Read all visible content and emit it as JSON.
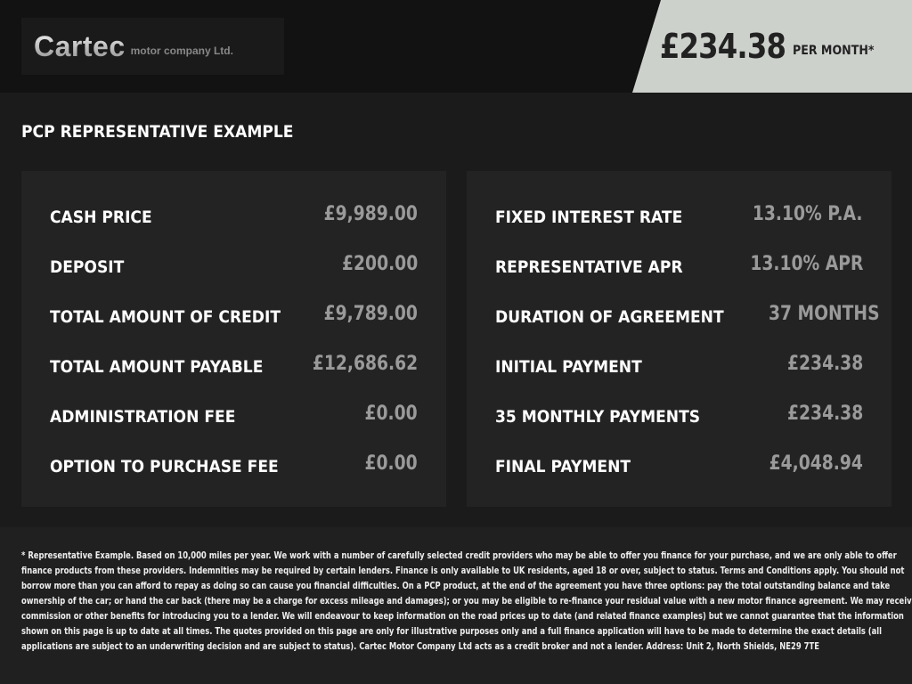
{
  "logo": {
    "main": "Cartec",
    "sub": "motor company Ltd."
  },
  "price": {
    "amount": "£234.38",
    "suffix": "PER MONTH*"
  },
  "title": "PCP REPRESENTATIVE EXAMPLE",
  "left": [
    {
      "label": "CASH PRICE",
      "value": "£9,989.00"
    },
    {
      "label": "DEPOSIT",
      "value": "£200.00"
    },
    {
      "label": "TOTAL AMOUNT OF CREDIT",
      "value": "£9,789.00"
    },
    {
      "label": "TOTAL AMOUNT PAYABLE",
      "value": "£12,686.62"
    },
    {
      "label": "ADMINISTRATION FEE",
      "value": "£0.00"
    },
    {
      "label": "OPTION TO PURCHASE FEE",
      "value": "£0.00"
    }
  ],
  "right": [
    {
      "label": "FIXED INTEREST RATE",
      "value": "13.10% P.A."
    },
    {
      "label": "REPRESENTATIVE APR",
      "value": "13.10% APR"
    },
    {
      "label": "DURATION OF AGREEMENT",
      "value": "37 MONTHS"
    },
    {
      "label": "INITIAL PAYMENT",
      "value": "£234.38"
    },
    {
      "label": "35 MONTHLY PAYMENTS",
      "value": "£234.38"
    },
    {
      "label": "FINAL PAYMENT",
      "value": "£4,048.94"
    }
  ],
  "disclaimer": [
    "* Representative Example. Based on 10,000 miles per year. We work with a number of carefully selected credit providers who may be able to offer you finance for your purchase, and we are only able to offer",
    "finance products from these providers. Indemnities may be required by certain lenders. Finance is only available to UK residents, aged 18 or over, subject to status. Terms and Conditions apply. You should not",
    "borrow more than you can afford to repay as doing so can cause you financial difficulties. On a PCP product, at the end of the agreement you have three options: pay the total outstanding balance and take",
    "ownership of the car; or hand the car back (there may be a charge for excess mileage and damages); or you may be eligible to re-finance your residual value with a new motor finance agreement. We may receive a",
    "commission or other benefits for introducing you to a lender. We will endeavour to keep information on the road prices up to date (and related finance examples) but we cannot guarantee that the information",
    "shown on this page is up to date at all times. The quotes provided on this page are only for illustrative purposes only and a full finance application will have to be made to determine the exact details (all",
    "applications are subject to an underwriting decision and are subject to status). Cartec Motor Company Ltd acts as a credit broker and not a lender. Address: Unit 2, North Shields, NE29 7TE"
  ]
}
